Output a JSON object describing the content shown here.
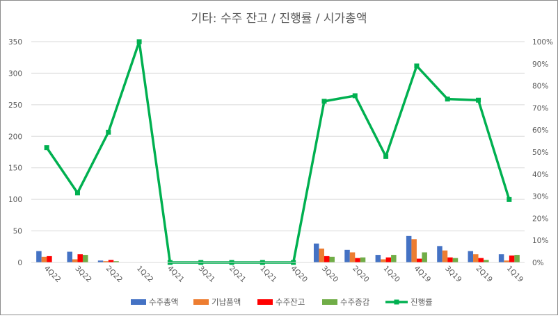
{
  "chart_data": {
    "type": "bar",
    "title": "기타: 수주 잔고 / 진행률 / 시가총액",
    "categories": [
      "4Q22",
      "3Q22",
      "2Q22",
      "1Q22",
      "4Q21",
      "3Q21",
      "2Q21",
      "1Q21",
      "4Q20",
      "3Q20",
      "2Q20",
      "1Q20",
      "4Q19",
      "3Q19",
      "2Q19",
      "1Q19"
    ],
    "left_axis": {
      "ylim": [
        0,
        350
      ],
      "ticks": [
        "0",
        "50",
        "100",
        "150",
        "200",
        "250",
        "300",
        "350"
      ]
    },
    "right_axis": {
      "ylim": [
        0,
        100
      ],
      "ticks": [
        "0%",
        "10%",
        "20%",
        "30%",
        "40%",
        "50%",
        "60%",
        "70%",
        "80%",
        "90%",
        "100%"
      ]
    },
    "grid": true,
    "legend_position": "bottom",
    "series": [
      {
        "name": "수주총액",
        "type": "bar",
        "axis": "left",
        "color": "#4472c4",
        "values": [
          18,
          17,
          3,
          0,
          0,
          0,
          0,
          0,
          0,
          30,
          20,
          12,
          42,
          26,
          18,
          13
        ]
      },
      {
        "name": "기납품액",
        "type": "bar",
        "axis": "left",
        "color": "#ed7d31",
        "values": [
          9,
          5,
          2,
          0,
          0,
          0,
          0,
          0,
          0,
          22,
          16,
          5,
          37,
          19,
          13,
          3
        ]
      },
      {
        "name": "수주잔고",
        "type": "bar",
        "axis": "left",
        "color": "#ff0000",
        "values": [
          10,
          13,
          4,
          0,
          0,
          0,
          0,
          0,
          0,
          10,
          7,
          8,
          6,
          8,
          7,
          11
        ]
      },
      {
        "name": "수주증감",
        "type": "bar",
        "axis": "left",
        "color": "#70ad47",
        "values": [
          0,
          12,
          2,
          0,
          0,
          0,
          0,
          0,
          0,
          9,
          8,
          12,
          16,
          7,
          4,
          12
        ]
      },
      {
        "name": "진행률",
        "type": "line",
        "axis": "right",
        "color": "#00b050",
        "values": [
          52,
          31.5,
          59,
          100,
          0,
          0,
          0,
          0,
          0,
          73,
          75.5,
          48,
          89,
          74,
          73.5,
          28.5
        ]
      }
    ]
  }
}
